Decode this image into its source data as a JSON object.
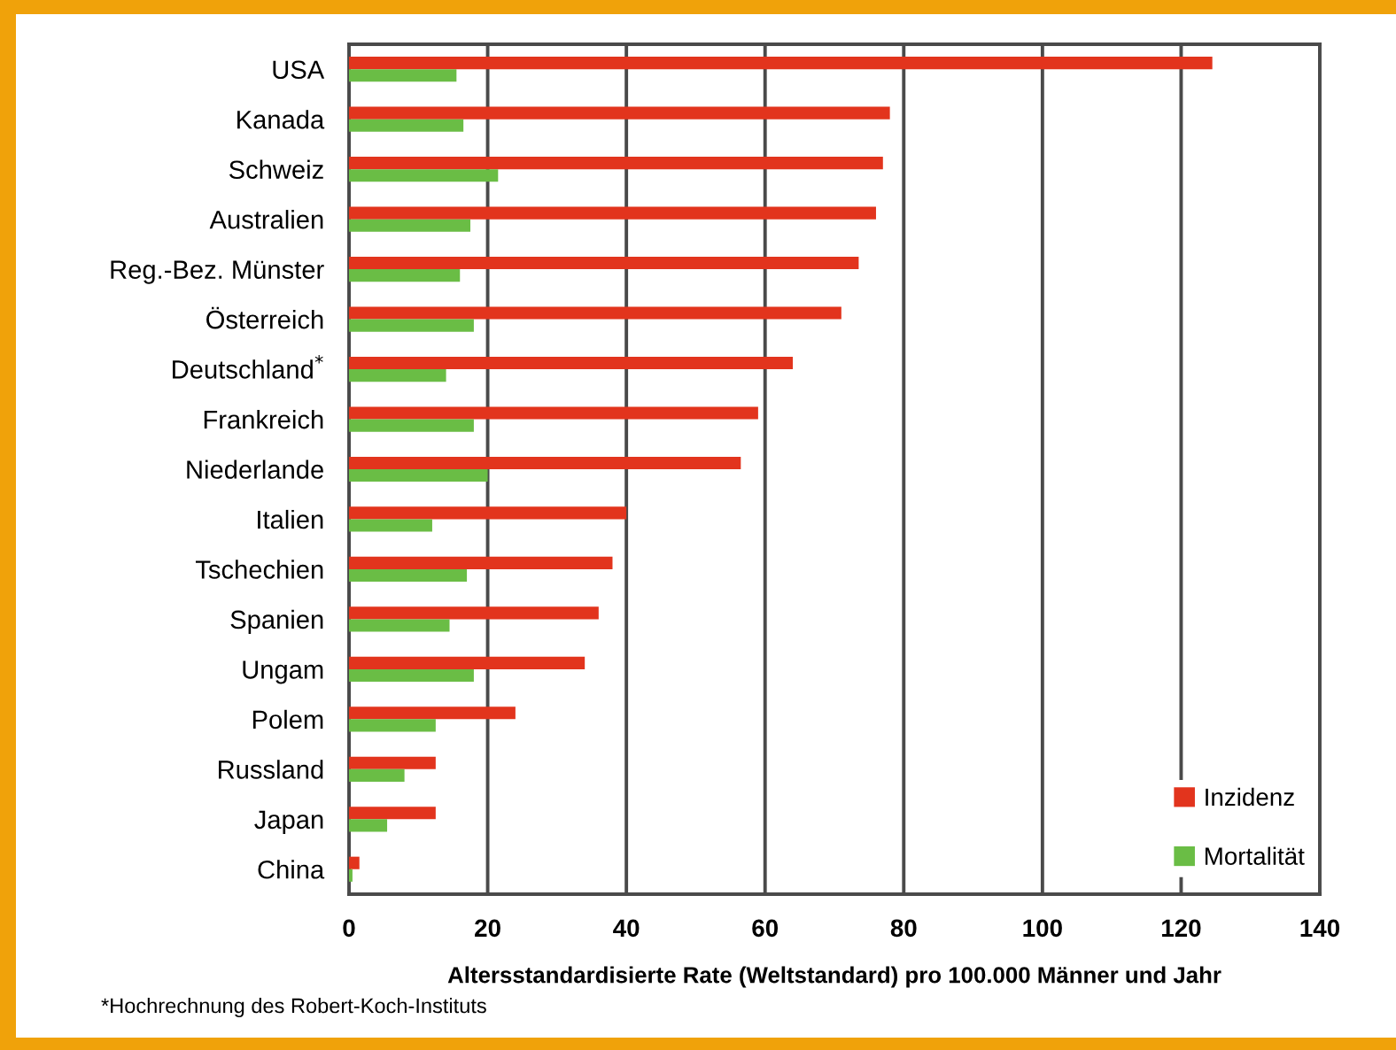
{
  "chart_data": {
    "type": "bar",
    "orientation": "horizontal",
    "categories": [
      "USA",
      "Kanada",
      "Schweiz",
      "Australien",
      "Reg.-Bez. Münster",
      "Österreich",
      "Deutschland$^{*}$",
      "Frankreich",
      "Niederlande",
      "Italien",
      "Tschechien",
      "Spanien",
      "Ungam",
      "Polem",
      "Russland",
      "Japan",
      "China"
    ],
    "series": [
      {
        "name": "Inzidenz",
        "color": "#e2341d",
        "values": [
          124.5,
          78,
          77,
          76,
          73.5,
          71,
          64,
          59,
          56.5,
          40,
          38,
          36,
          34,
          24,
          12.5,
          12.5,
          1.5
        ]
      },
      {
        "name": "Mortalität",
        "color": "#6abd45",
        "values": [
          15.5,
          16.5,
          21.5,
          17.5,
          16,
          18,
          14,
          18,
          20,
          12,
          17,
          14.5,
          18,
          12.5,
          8,
          5.5,
          0.5
        ]
      }
    ],
    "xlim": [
      0,
      140
    ],
    "xticks": [
      0,
      20,
      40,
      60,
      80,
      100,
      120,
      140
    ],
    "xlabel": "Altersstandardisierte Rate (Weltstandard) pro 100.000 Männer und Jahr",
    "annotations": [
      "*Hochrechnung des Robert-Koch-Instituts"
    ],
    "grid": "x",
    "legend": "bottom right"
  }
}
